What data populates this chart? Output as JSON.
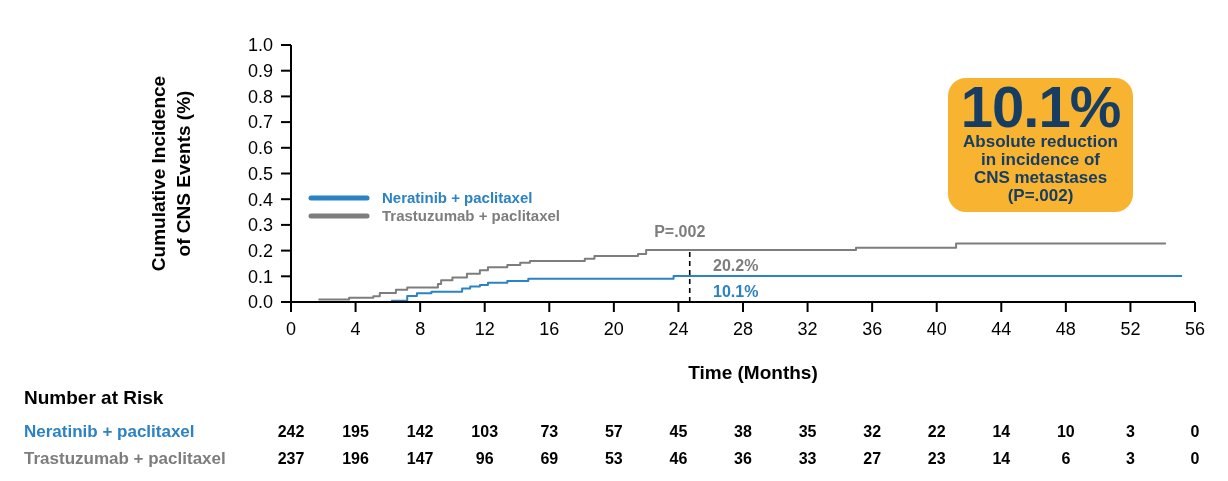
{
  "chart_data": [
    {
      "type": "step",
      "ylabel": "Cumulative Incidence of CNS Events (%)",
      "xlabel": "Time (Months)",
      "xlim": [
        0,
        56
      ],
      "xticks": [
        0,
        4,
        8,
        12,
        16,
        20,
        24,
        28,
        32,
        36,
        40,
        44,
        48,
        52,
        56
      ],
      "ylim": [
        0,
        1
      ],
      "yticks": [
        {
          "value": 0,
          "label": "0.0"
        },
        0.1,
        0.2,
        0.3,
        0.4,
        0.5,
        0.6,
        0.7,
        0.8,
        0.9,
        {
          "value": 1,
          "label": "1.0"
        }
      ],
      "legend": "left",
      "series": [
        {
          "name": "Neratinib + paclitaxel",
          "color": "#2b82c4",
          "x": [
            6.2,
            7.2,
            7.8,
            8.7,
            10.6,
            11.1,
            11.7,
            12.2,
            13.4,
            14.7,
            23.7,
            55.2
          ],
          "values": [
            0.005,
            0.023,
            0.034,
            0.04,
            0.053,
            0.06,
            0.066,
            0.075,
            0.082,
            0.09,
            0.101,
            0.101
          ]
        },
        {
          "name": "Trastuzumab + paclitaxel",
          "color": "#7d7d7d",
          "x": [
            1.7,
            3.6,
            5.1,
            5.5,
            6.5,
            7.2,
            9.1,
            9.3,
            10.0,
            10.9,
            11.7,
            12.2,
            13.4,
            14.2,
            14.8,
            18.2,
            18.8,
            21.5,
            22.0,
            35.0,
            41.2,
            54.2
          ],
          "values": [
            0.01,
            0.017,
            0.022,
            0.035,
            0.048,
            0.056,
            0.07,
            0.085,
            0.095,
            0.11,
            0.124,
            0.135,
            0.144,
            0.153,
            0.16,
            0.168,
            0.179,
            0.187,
            0.202,
            0.211,
            0.228,
            0.228
          ]
        }
      ],
      "ref_lines": [
        {
          "axis": "x",
          "value": 24.7,
          "label": "P=.002",
          "color": "#000000",
          "line_style": "dashed"
        }
      ],
      "annotations": [
        {
          "text": "20.2%",
          "x": 24.7,
          "y": 0.202
        },
        {
          "text": "10.1%",
          "x": 24.7,
          "y": 0.101
        },
        "10.1%",
        "Absolute reduction in incidence of CNS metastases (P=.002)"
      ]
    },
    {
      "type": "other",
      "title": "Number at Risk",
      "y_categories": [
        "Neratinib + paclitaxel",
        "Trastuzumab + paclitaxel"
      ],
      "colors": [
        "#2b82c4",
        "#7d7d7d"
      ],
      "annotations": [
        "242",
        "195",
        "142",
        "103",
        "73",
        "57",
        "45",
        "38",
        "35",
        "32",
        "22",
        "14",
        "10",
        "3",
        "0",
        "237",
        "196",
        "147",
        "96",
        "69",
        "53",
        "46",
        "36",
        "33",
        "27",
        "23",
        "14",
        "6",
        "3",
        "0"
      ]
    }
  ]
}
